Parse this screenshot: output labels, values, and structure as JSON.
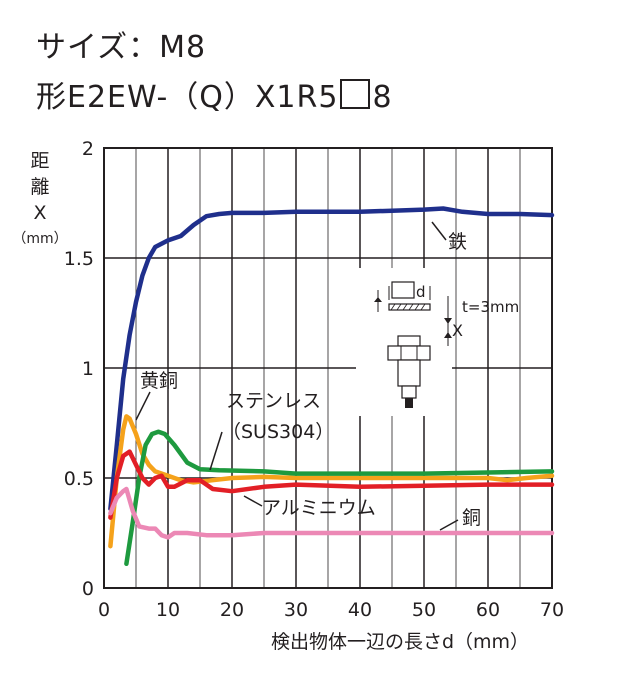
{
  "title": {
    "line1": "サイズ：M8",
    "line2_prefix": "形E2EW-（Q）X1R5",
    "line2_suffix": "8"
  },
  "chart_data": {
    "type": "line",
    "xlabel": "検出物体一辺の長さd（mm）",
    "ylabel": "距離X（mm）",
    "xlim": [
      0,
      70
    ],
    "ylim": [
      0,
      2
    ],
    "x_ticks": [
      "0",
      "10",
      "20",
      "30",
      "40",
      "50",
      "60",
      "70"
    ],
    "y_ticks": [
      "0",
      "0.5",
      "1",
      "1.5",
      "2"
    ],
    "grid": true,
    "series": [
      {
        "name": "鉄",
        "color": "#1f2f8c",
        "points": [
          [
            1,
            0.36
          ],
          [
            2,
            0.65
          ],
          [
            3,
            0.95
          ],
          [
            4,
            1.15
          ],
          [
            5,
            1.3
          ],
          [
            6,
            1.42
          ],
          [
            7,
            1.5
          ],
          [
            8,
            1.55
          ],
          [
            10,
            1.58
          ],
          [
            12,
            1.6
          ],
          [
            14,
            1.65
          ],
          [
            16,
            1.69
          ],
          [
            18,
            1.7
          ],
          [
            20,
            1.705
          ],
          [
            25,
            1.705
          ],
          [
            30,
            1.71
          ],
          [
            40,
            1.71
          ],
          [
            45,
            1.715
          ],
          [
            50,
            1.72
          ],
          [
            53,
            1.725
          ],
          [
            56,
            1.71
          ],
          [
            60,
            1.7
          ],
          [
            65,
            1.7
          ],
          [
            70,
            1.695
          ]
        ]
      },
      {
        "name": "黄銅",
        "color": "#f5a21b",
        "points": [
          [
            1,
            0.19
          ],
          [
            2,
            0.5
          ],
          [
            3,
            0.72
          ],
          [
            3.5,
            0.78
          ],
          [
            4,
            0.77
          ],
          [
            5,
            0.7
          ],
          [
            6,
            0.61
          ],
          [
            7,
            0.56
          ],
          [
            8,
            0.53
          ],
          [
            10,
            0.51
          ],
          [
            12,
            0.49
          ],
          [
            14,
            0.48
          ],
          [
            17,
            0.49
          ],
          [
            20,
            0.5
          ],
          [
            25,
            0.505
          ],
          [
            30,
            0.5
          ],
          [
            40,
            0.5
          ],
          [
            50,
            0.5
          ],
          [
            60,
            0.5
          ],
          [
            63,
            0.49
          ],
          [
            66,
            0.5
          ],
          [
            70,
            0.51
          ]
        ]
      },
      {
        "name": "ステンレス（SUS304）",
        "color": "#1e9a3f",
        "points": [
          [
            3.5,
            0.11
          ],
          [
            4.5,
            0.3
          ],
          [
            5.5,
            0.5
          ],
          [
            6.5,
            0.65
          ],
          [
            7.5,
            0.7
          ],
          [
            8.5,
            0.71
          ],
          [
            9.5,
            0.7
          ],
          [
            11,
            0.65
          ],
          [
            13,
            0.57
          ],
          [
            15,
            0.54
          ],
          [
            18,
            0.535
          ],
          [
            25,
            0.53
          ],
          [
            30,
            0.52
          ],
          [
            40,
            0.52
          ],
          [
            50,
            0.52
          ],
          [
            60,
            0.525
          ],
          [
            70,
            0.53
          ]
        ]
      },
      {
        "name": "アルミニウム",
        "color": "#e21f26",
        "points": [
          [
            1,
            0.32
          ],
          [
            2,
            0.5
          ],
          [
            3,
            0.6
          ],
          [
            4,
            0.62
          ],
          [
            5,
            0.56
          ],
          [
            6,
            0.5
          ],
          [
            7,
            0.47
          ],
          [
            8,
            0.5
          ],
          [
            9,
            0.51
          ],
          [
            10,
            0.46
          ],
          [
            11,
            0.46
          ],
          [
            13,
            0.49
          ],
          [
            15,
            0.49
          ],
          [
            17,
            0.45
          ],
          [
            20,
            0.44
          ],
          [
            25,
            0.46
          ],
          [
            30,
            0.47
          ],
          [
            40,
            0.46
          ],
          [
            50,
            0.465
          ],
          [
            60,
            0.47
          ],
          [
            70,
            0.47
          ]
        ]
      },
      {
        "name": "銅",
        "color": "#ec88b5",
        "points": [
          [
            1,
            0.34
          ],
          [
            2,
            0.41
          ],
          [
            3,
            0.44
          ],
          [
            3.5,
            0.45
          ],
          [
            4.5,
            0.35
          ],
          [
            5.5,
            0.28
          ],
          [
            7,
            0.27
          ],
          [
            8,
            0.27
          ],
          [
            9,
            0.24
          ],
          [
            10,
            0.23
          ],
          [
            11,
            0.25
          ],
          [
            13,
            0.25
          ],
          [
            16,
            0.24
          ],
          [
            20,
            0.24
          ],
          [
            25,
            0.25
          ],
          [
            30,
            0.25
          ],
          [
            70,
            0.25
          ]
        ]
      }
    ],
    "annotations": {
      "series_labels": [
        "鉄",
        "黄銅",
        "ステンレス",
        "（SUS304）",
        "アルミニウム",
        "銅"
      ],
      "inset": {
        "dimension_label": "d",
        "thickness_label": "t=3mm",
        "distance_label": "X"
      }
    }
  }
}
